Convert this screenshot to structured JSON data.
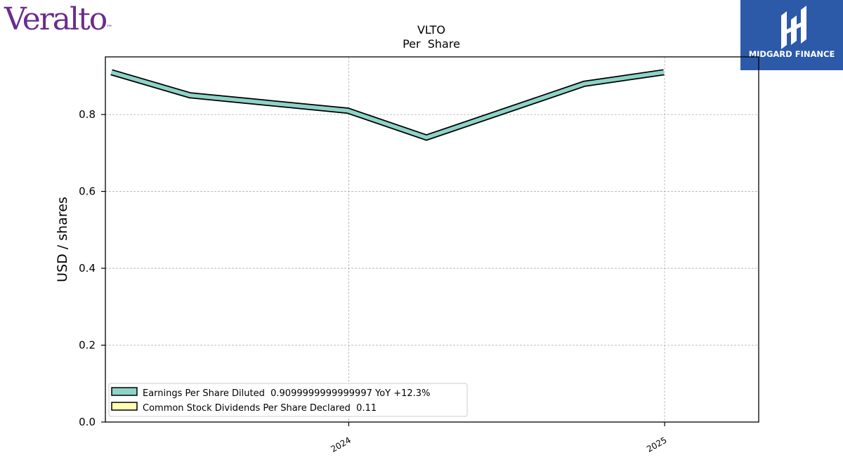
{
  "brand": {
    "logo_text": "Veralto",
    "logo_mark": "™",
    "color": "#6a2c8e"
  },
  "publisher": {
    "name": "MIDGARD FINANCE",
    "color": "#2c5aa8",
    "icon": "midgard-monogram-icon"
  },
  "chart_data": {
    "type": "line",
    "title": "VLTO",
    "subtitle": "Per  Share",
    "xlabel": "",
    "ylabel": "USD / shares",
    "x_ticks": [
      "2024",
      "2025"
    ],
    "xlim": [
      "2023-03-25",
      "2025-04-20"
    ],
    "ylim": [
      0.0,
      0.95
    ],
    "y_ticks": [
      0.0,
      0.2,
      0.4,
      0.6,
      0.8
    ],
    "grid": true,
    "legend_position": "lower-left",
    "series": [
      {
        "name": "Earnings Per Share Diluted",
        "legend_label": "Earnings Per Share Diluted  0.9099999999999997 YoY +12.3%",
        "color": "#8dd3c7",
        "x": [
          "2023-04-01",
          "2023-07-01",
          "2023-12-31",
          "2024-03-31",
          "2024-09-30",
          "2024-12-31"
        ],
        "y": [
          0.91,
          0.85,
          0.81,
          0.74,
          0.88,
          0.91
        ]
      },
      {
        "name": "Common Stock Dividends Per Share Declared",
        "legend_label": "Common Stock Dividends Per Share Declared  0.11",
        "color": "#ffffb3",
        "x": [],
        "y": []
      }
    ]
  }
}
